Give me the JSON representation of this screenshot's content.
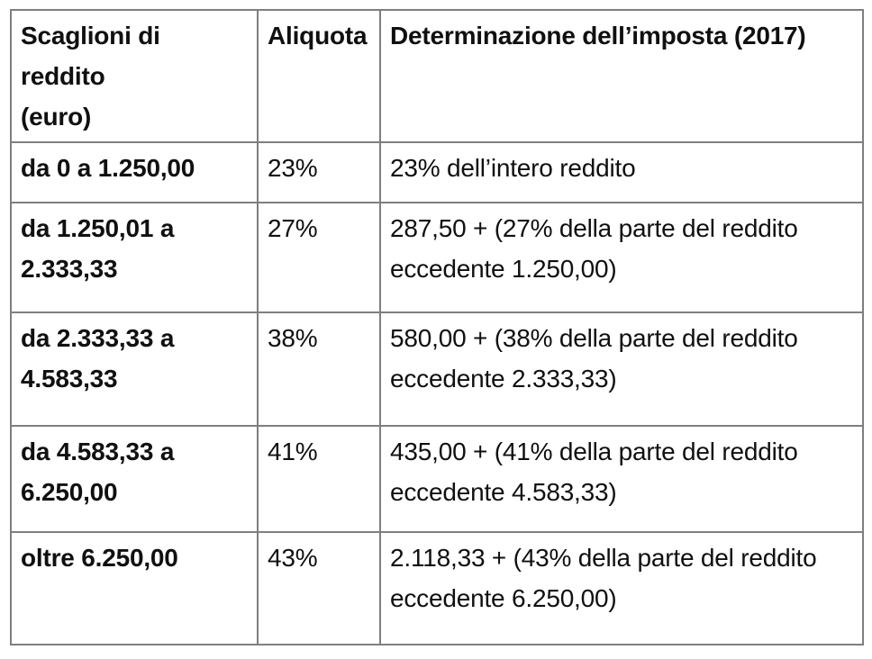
{
  "colors": {
    "border": "#7f7f7f",
    "text": "#101010",
    "background": "#ffffff"
  },
  "table": {
    "columns": [
      {
        "label": "Scaglioni di reddito\n(euro)"
      },
      {
        "label": "Aliquota"
      },
      {
        "label": "Determinazione dell’imposta (2017)"
      }
    ],
    "rows": [
      {
        "bracket": "da 0 a 1.250,00",
        "rate": "23%",
        "formula": "23% dell’intero reddito"
      },
      {
        "bracket": "da 1.250,01 a\n2.333,33",
        "rate": "27%",
        "formula": "287,50 + (27% della parte del reddito\neccedente 1.250,00)"
      },
      {
        "bracket": "da 2.333,33 a\n4.583,33",
        "rate": "38%",
        "formula": "580,00 + (38% della parte del reddito\neccedente 2.333,33)"
      },
      {
        "bracket": "da 4.583,33 a\n6.250,00",
        "rate": "41%",
        "formula": "435,00 + (41% della parte del reddito\neccedente 4.583,33)"
      },
      {
        "bracket": "oltre 6.250,00",
        "rate": "43%",
        "formula": "2.118,33 + (43% della parte del reddito\neccedente 6.250,00)"
      }
    ]
  },
  "chart_data": {
    "type": "table",
    "title": "Determinazione dell’imposta (2017)",
    "columns": [
      "Scaglioni di reddito (euro)",
      "Aliquota",
      "Determinazione dell’imposta (2017)"
    ],
    "rows": [
      [
        "da 0 a 1.250,00",
        "23%",
        "23% dell’intero reddito"
      ],
      [
        "da 1.250,01 a 2.333,33",
        "27%",
        "287,50 + (27% della parte del reddito eccedente 1.250,00)"
      ],
      [
        "da 2.333,33 a 4.583,33",
        "38%",
        "580,00 + (38% della parte del reddito eccedente 2.333,33)"
      ],
      [
        "da 4.583,33 a 6.250,00",
        "41%",
        "435,00 + (41% della parte del reddito eccedente 4.583,33)"
      ],
      [
        "oltre 6.250,00",
        "43%",
        "2.118,33 + (43% della parte del reddito eccedente 6.250,00)"
      ]
    ],
    "rates_percent": [
      23,
      27,
      38,
      41,
      43
    ],
    "bracket_bounds_euro": [
      [
        0,
        1250.0
      ],
      [
        1250.01,
        2333.33
      ],
      [
        2333.33,
        4583.33
      ],
      [
        4583.33,
        6250.0
      ],
      [
        6250.0,
        null
      ]
    ],
    "base_tax_euro": [
      0,
      287.5,
      580.0,
      435.0,
      2118.33
    ]
  }
}
